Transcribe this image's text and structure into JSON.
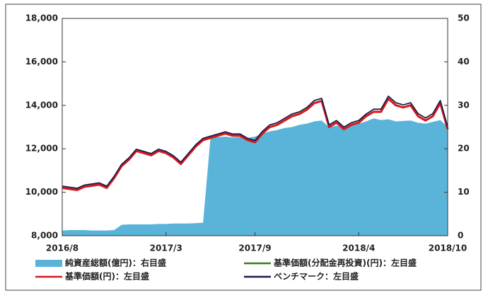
{
  "chart_data": {
    "type": "line",
    "categories": [
      "2016/8",
      null,
      null,
      null,
      null,
      null,
      null,
      null,
      null,
      null,
      null,
      null,
      null,
      null,
      "2017/3",
      null,
      null,
      null,
      null,
      null,
      null,
      null,
      null,
      null,
      null,
      null,
      "2017/9",
      null,
      null,
      null,
      null,
      null,
      null,
      null,
      null,
      null,
      null,
      null,
      null,
      null,
      "2018/4",
      null,
      null,
      null,
      null,
      null,
      null,
      null,
      null,
      null,
      null,
      null,
      "2018/10"
    ],
    "ylim": [
      8000,
      18000
    ],
    "yticks": [
      {
        "value": 8000,
        "label": "8,000"
      },
      {
        "value": 10000,
        "label": "10,000"
      },
      {
        "value": 12000,
        "label": "12,000"
      },
      {
        "value": 14000,
        "label": "14,000"
      },
      {
        "value": 16000,
        "label": "16,000"
      },
      {
        "value": 18000,
        "label": "18,000"
      }
    ],
    "y2lim": [
      0,
      50
    ],
    "y2ticks": [
      0,
      10,
      20,
      30,
      40,
      50
    ],
    "grid": false,
    "series": [
      {
        "name": "純資産総額(億円)：右目盛",
        "type": "area",
        "axis": "y2",
        "color": "#5ab4d9",
        "values": [
          1.2,
          1.3,
          1.3,
          1.3,
          1.2,
          1.2,
          1.2,
          1.3,
          2.5,
          2.6,
          2.6,
          2.6,
          2.6,
          2.7,
          2.7,
          2.8,
          2.8,
          2.8,
          2.9,
          3.0,
          22.6,
          22.7,
          22.8,
          22.6,
          22.7,
          22.5,
          22.8,
          23.5,
          24.0,
          24.3,
          24.8,
          25.0,
          25.5,
          25.8,
          26.3,
          26.5,
          25.0,
          25.3,
          25.0,
          25.4,
          25.8,
          26.3,
          27.0,
          26.6,
          26.8,
          26.3,
          26.4,
          26.5,
          26.0,
          25.8,
          26.2,
          26.6,
          25.0
        ]
      },
      {
        "name": "基準価額(分配金再投資)(円)：左目盛",
        "type": "line",
        "color": "#3a7d1e",
        "values": [
          10220,
          10170,
          10120,
          10270,
          10320,
          10370,
          10220,
          10670,
          11220,
          11520,
          11920,
          11820,
          11720,
          11920,
          11820,
          11620,
          11320,
          11720,
          12120,
          12420,
          12520,
          12620,
          12720,
          12620,
          12620,
          12420,
          12320,
          12720,
          13020,
          13120,
          13320,
          13520,
          13620,
          13820,
          14120,
          14220,
          13020,
          13220,
          12920,
          13120,
          13220,
          13520,
          13720,
          13720,
          14320,
          14020,
          13920,
          14020,
          13520,
          13320,
          13520,
          14120,
          12920
        ]
      },
      {
        "name": "基準価額(円)：左目盛",
        "type": "line",
        "color": "#d7191c",
        "values": [
          10200,
          10150,
          10100,
          10250,
          10300,
          10350,
          10200,
          10650,
          11200,
          11500,
          11900,
          11800,
          11700,
          11900,
          11800,
          11600,
          11300,
          11700,
          12100,
          12400,
          12500,
          12600,
          12700,
          12600,
          12600,
          12400,
          12300,
          12700,
          13000,
          13100,
          13300,
          13500,
          13600,
          13800,
          14100,
          14200,
          13000,
          13200,
          12900,
          13100,
          13200,
          13500,
          13700,
          13700,
          14300,
          14000,
          13900,
          14000,
          13500,
          13300,
          13500,
          14100,
          12900
        ]
      },
      {
        "name": "ベンチマーク：左目盛",
        "type": "line",
        "color": "#1b1b4d",
        "values": [
          10280,
          10230,
          10180,
          10330,
          10380,
          10430,
          10280,
          10730,
          11280,
          11580,
          11980,
          11880,
          11780,
          11980,
          11880,
          11680,
          11380,
          11780,
          12180,
          12480,
          12580,
          12680,
          12780,
          12680,
          12680,
          12480,
          12380,
          12800,
          13100,
          13200,
          13400,
          13600,
          13700,
          13900,
          14220,
          14320,
          13100,
          13300,
          13000,
          13200,
          13300,
          13600,
          13820,
          13820,
          14420,
          14120,
          14020,
          14120,
          13620,
          13420,
          13620,
          14220,
          13000
        ]
      }
    ]
  }
}
